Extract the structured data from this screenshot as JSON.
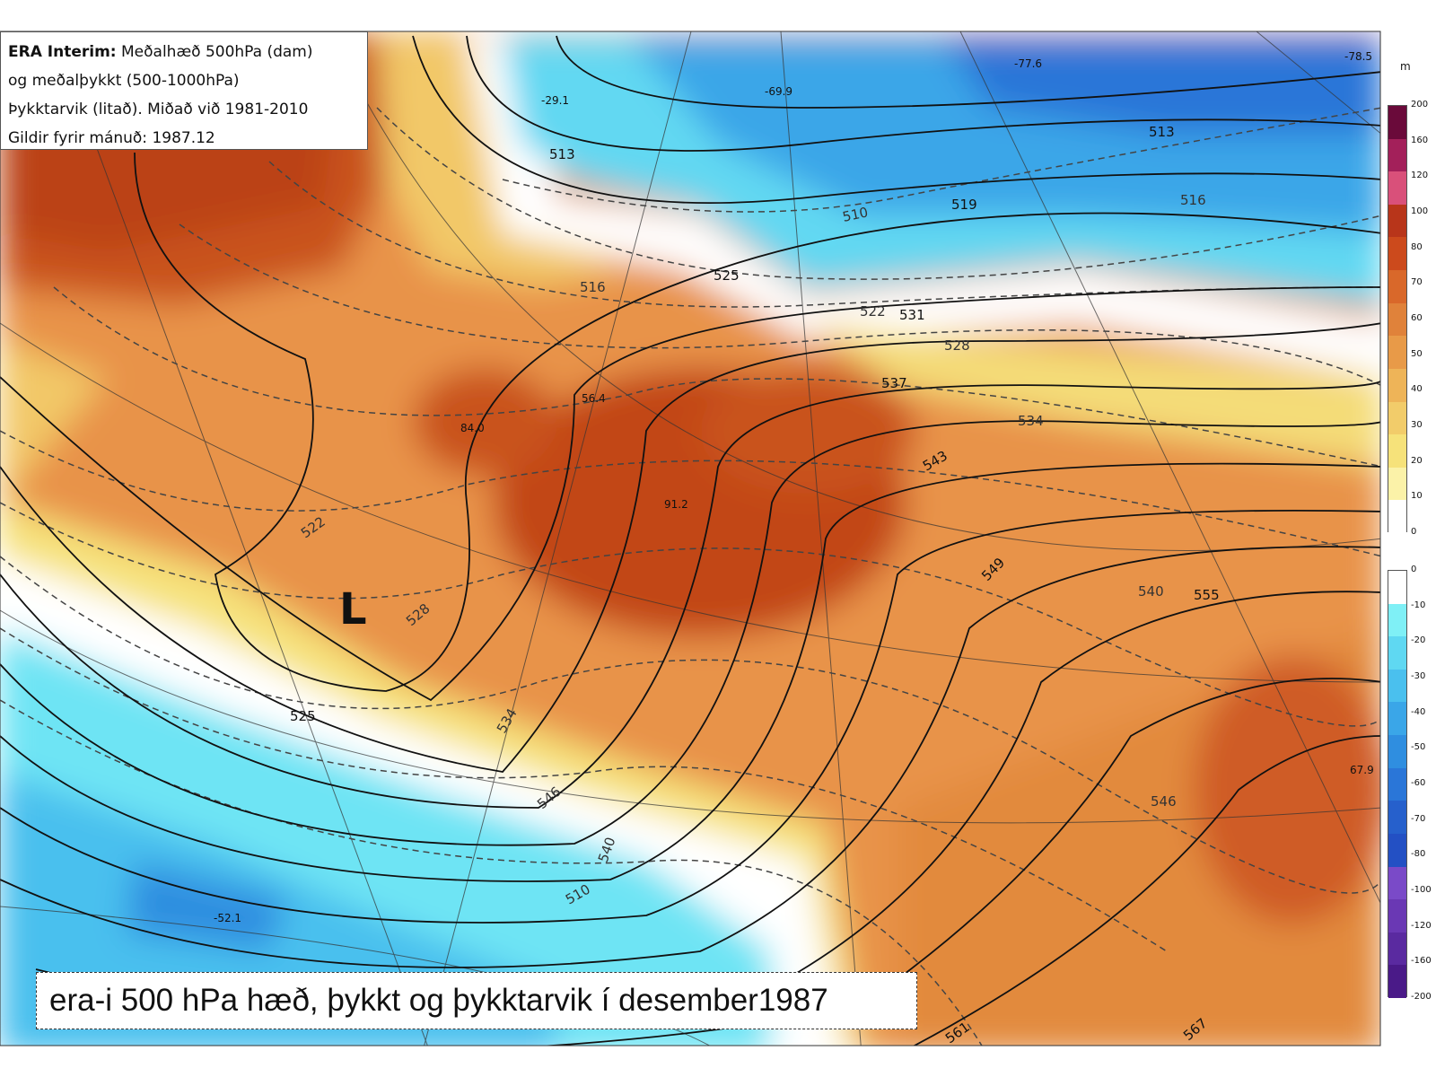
{
  "info": {
    "line1_bold": "ERA Interim:",
    "line1_rest": " Meðalhæð 500hPa (dam)",
    "line2": "og meðalþykkt (500-1000hPa)",
    "line3": "Þykktarvik (litað). Miðað við 1981-2010",
    "line4": "Gildir fyrir mánuð: 1987.12"
  },
  "caption": "era-i 500 hPa hæð, þykkt og þykktarvik í desember1987",
  "colorbar": {
    "unit": "m",
    "positive_ticks": [
      "200",
      "160",
      "120",
      "100",
      "80",
      "70",
      "60",
      "50",
      "40",
      "30",
      "20",
      "10",
      "0"
    ],
    "negative_ticks": [
      "0",
      "-10",
      "-20",
      "-30",
      "-40",
      "-50",
      "-60",
      "-70",
      "-80",
      "-100",
      "-120",
      "-160",
      "-200"
    ],
    "positive_colors": [
      "#6a0a3a",
      "#a3205a",
      "#d9507a",
      "#b8351a",
      "#cc4a1c",
      "#d9682a",
      "#e0823a",
      "#e89a48",
      "#eeb458",
      "#f2cc6a",
      "#f6e27a",
      "#fbf2a8",
      "#ffffff"
    ],
    "negative_colors": [
      "#ffffff",
      "#7ff0f6",
      "#5fd8f2",
      "#4ac0ee",
      "#3aa6e8",
      "#2f8ee0",
      "#2a76d8",
      "#2660cc",
      "#2350c4",
      "#7a4ac8",
      "#6a38b4",
      "#5a2aa0",
      "#4a1a88"
    ]
  },
  "map_labels": {
    "low_symbol": "L",
    "anomaly_values": [
      "-29.1",
      "-69.9",
      "-77.6",
      "-78.5",
      "84.0",
      "56.4",
      "91.2",
      "-52.1",
      "67.9"
    ],
    "height_contours": [
      "513",
      "513",
      "519",
      "525",
      "531",
      "537",
      "543",
      "549",
      "555",
      "561",
      "567",
      "525"
    ],
    "thickness_contours": [
      "510",
      "516",
      "516",
      "522",
      "522",
      "528",
      "528",
      "534",
      "534",
      "540",
      "540",
      "546",
      "546",
      "510"
    ]
  }
}
